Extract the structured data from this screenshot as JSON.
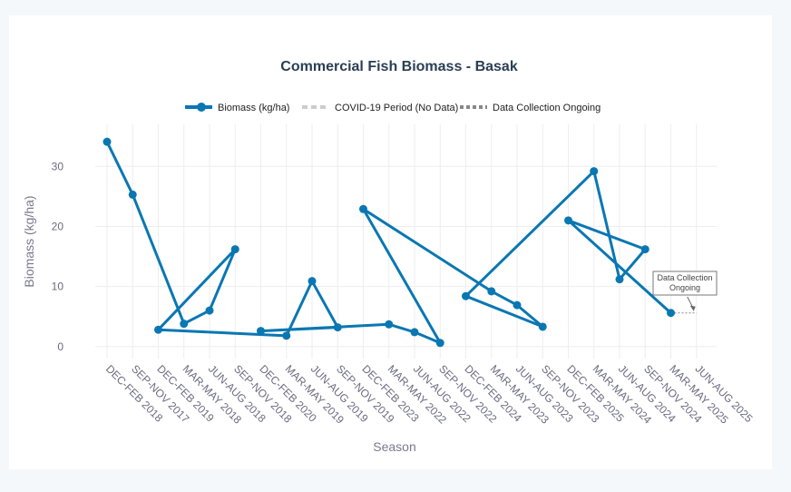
{
  "chart_data": {
    "type": "line",
    "title": "Commercial Fish Biomass - Basak",
    "xlabel": "Season",
    "ylabel": "Biomass (kg/ha)",
    "ylim": [
      -2,
      37
    ],
    "yticks": [
      0,
      10,
      20,
      30
    ],
    "grid": true,
    "legend_position": "top",
    "categories": [
      "DEC-FEB 2018",
      "SEP-NOV 2017",
      "DEC-FEB 2019",
      "MAR-MAY 2018",
      "JUN-AUG 2018",
      "SEP-NOV 2018",
      "DEC-FEB 2020",
      "MAR-MAY 2019",
      "JUN-AUG 2019",
      "SEP-NOV 2019",
      "DEC-FEB 2023",
      "MAR-MAY 2022",
      "JUN-AUG 2022",
      "SEP-NOV 2022",
      "DEC-FEB 2024",
      "MAR-MAY 2023",
      "JUN-AUG 2023",
      "SEP-NOV 2023",
      "DEC-FEB 2025",
      "MAR-MAY 2024",
      "JUN-AUG 2024",
      "SEP-NOV 2024",
      "MAR-MAY 2025",
      "JUN-AUG 2025"
    ],
    "series": [
      {
        "name": "Biomass (kg/ha)",
        "color": "#0a77b3",
        "style": "solid",
        "points": [
          [
            "DEC-FEB 2018",
            34.1
          ],
          [
            "SEP-NOV 2017",
            25.3
          ],
          [
            "MAR-MAY 2018",
            3.8
          ],
          [
            "JUN-AUG 2018",
            6.0
          ],
          [
            "SEP-NOV 2018",
            16.2
          ],
          [
            "DEC-FEB 2019",
            2.8
          ],
          [
            "MAR-MAY 2019",
            1.8
          ],
          [
            "JUN-AUG 2019",
            10.9
          ],
          [
            "SEP-NOV 2019",
            3.2
          ],
          [
            "DEC-FEB 2020",
            2.6
          ],
          [
            "MAR-MAY 2022",
            3.7
          ],
          [
            "JUN-AUG 2022",
            2.4
          ],
          [
            "SEP-NOV 2022",
            0.6
          ],
          [
            "DEC-FEB 2023",
            22.9
          ],
          [
            "MAR-MAY 2023",
            9.2
          ],
          [
            "JUN-AUG 2023",
            6.9
          ],
          [
            "SEP-NOV 2023",
            3.3
          ],
          [
            "DEC-FEB 2024",
            8.4
          ],
          [
            "MAR-MAY 2024",
            29.2
          ],
          [
            "JUN-AUG 2024",
            11.2
          ],
          [
            "SEP-NOV 2024",
            16.2
          ],
          [
            "DEC-FEB 2025",
            21.0
          ],
          [
            "MAR-MAY 2025",
            5.6
          ]
        ]
      },
      {
        "name": "COVID-19 Period (No Data)",
        "color": "#cccccc",
        "style": "dash",
        "points": [
          [
            "DEC-FEB 2020",
            2.6
          ],
          [
            "SEP-NOV 2019",
            3.2
          ],
          [
            "MAR-MAY 2022",
            3.7
          ]
        ]
      },
      {
        "name": "Data Collection Ongoing",
        "color": "#888888",
        "style": "dot",
        "points": [
          [
            "MAR-MAY 2025",
            5.6
          ],
          [
            "JUN-AUG 2025",
            5.6
          ]
        ]
      }
    ],
    "annotations": [
      {
        "text": [
          "Data Collection",
          "Ongoing"
        ],
        "x": "JUN-AUG 2025",
        "y": 5.6
      }
    ]
  }
}
